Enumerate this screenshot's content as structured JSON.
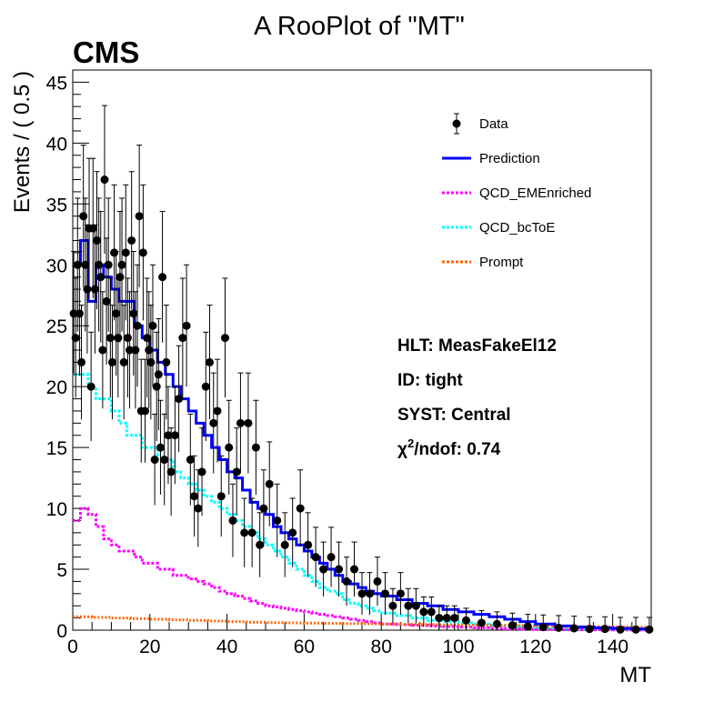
{
  "chart_data": {
    "type": "line",
    "title": "A RooPlot of \"MT\"",
    "xlabel": "MT",
    "ylabel": "Events / ( 0.5 )",
    "xlim": [
      0,
      150
    ],
    "ylim": [
      0,
      46
    ],
    "x_ticks": [
      0,
      20,
      40,
      60,
      80,
      100,
      120,
      140
    ],
    "y_ticks": [
      0,
      5,
      10,
      15,
      20,
      25,
      30,
      35,
      40,
      45
    ],
    "bin_width": 0.5,
    "legend_position": "top-right",
    "colors": {
      "Data": "#000000",
      "Prediction": "#0000ff",
      "QCD_EMEnriched": "#ff00ff",
      "QCD_bcToE": "#00ffff",
      "Prompt": "#ff6600"
    },
    "legend": [
      {
        "name": "Data",
        "style": "marker"
      },
      {
        "name": "Prediction",
        "style": "solid"
      },
      {
        "name": "QCD_EMEnriched",
        "style": "dotted"
      },
      {
        "name": "QCD_bcToE",
        "style": "dotted"
      },
      {
        "name": "Prompt",
        "style": "dotted"
      }
    ],
    "series": [
      {
        "name": "Data",
        "x": [
          0.25,
          0.75,
          1.25,
          1.75,
          2.25,
          2.75,
          3.25,
          3.75,
          4.25,
          4.75,
          5.25,
          5.75,
          6.25,
          6.75,
          7.25,
          7.75,
          8.25,
          8.75,
          9.25,
          9.75,
          10.25,
          10.75,
          11.25,
          11.75,
          12.25,
          12.75,
          13.25,
          13.75,
          14.25,
          14.75,
          15.25,
          15.75,
          16.25,
          16.75,
          17.25,
          17.75,
          18.25,
          18.75,
          19.25,
          19.75,
          20.25,
          20.75,
          21.25,
          21.75,
          22.25,
          22.75,
          23.25,
          23.75,
          24.25,
          24.75,
          25.5,
          26.5,
          27.5,
          28.5,
          29.5,
          30.5,
          31.5,
          32.5,
          33.5,
          34.5,
          35.5,
          36.5,
          37.5,
          38.5,
          39.5,
          40.5,
          41.5,
          42.5,
          43.5,
          44.5,
          45.5,
          46.5,
          47.5,
          48.5,
          49.5,
          51,
          53,
          55,
          57,
          59,
          61,
          63,
          65,
          67,
          69,
          71,
          73,
          75,
          77,
          79,
          81,
          83,
          85,
          87,
          89,
          91,
          93,
          95,
          97,
          99,
          102,
          106,
          110,
          114,
          118,
          122,
          126,
          130,
          134,
          138,
          142,
          146,
          149.5
        ],
        "y": [
          26,
          24,
          30,
          26,
          22,
          34,
          30,
          28,
          33,
          20,
          33,
          28,
          32,
          30,
          29,
          23,
          37,
          27,
          30,
          24,
          22,
          31,
          26,
          24,
          29,
          30,
          22,
          31,
          24,
          23,
          32,
          26,
          23,
          25,
          34,
          18,
          31,
          18,
          24,
          23,
          22,
          25,
          14,
          20,
          21,
          15,
          29,
          14,
          22,
          16,
          13,
          16,
          19,
          24,
          25,
          14,
          11,
          10,
          13,
          20,
          22,
          17,
          18,
          11,
          24,
          15,
          9,
          13,
          17,
          8,
          17,
          8,
          15,
          7,
          10,
          12,
          9,
          7,
          8,
          10,
          7,
          6,
          5,
          6,
          5,
          4,
          5,
          3,
          3,
          4,
          3,
          2,
          3,
          2,
          2,
          1.5,
          1.5,
          1,
          1,
          1,
          0.8,
          0.6,
          0.5,
          0.4,
          0.3,
          0.25,
          0.2,
          0.15,
          0.1,
          0.1,
          0.05,
          0.05,
          0.05
        ]
      },
      {
        "name": "Prediction",
        "x": [
          0,
          2,
          4,
          6,
          8,
          10,
          12,
          14,
          16,
          18,
          20,
          22,
          24,
          26,
          28,
          30,
          32,
          34,
          36,
          38,
          40,
          42,
          44,
          46,
          48,
          50,
          52,
          54,
          56,
          58,
          60,
          62,
          64,
          66,
          68,
          70,
          72,
          74,
          76,
          78,
          80,
          84,
          88,
          92,
          96,
          100,
          104,
          108,
          112,
          116,
          120,
          125,
          130,
          135,
          140,
          145,
          150
        ],
        "y": [
          30,
          32,
          27,
          30,
          29,
          28,
          27,
          27,
          25,
          24,
          23,
          22,
          21,
          20,
          19,
          18,
          17,
          16,
          15,
          14,
          13,
          12.5,
          11.5,
          10.5,
          10,
          9.5,
          8.5,
          8,
          7.5,
          7,
          6.5,
          6,
          5.5,
          5,
          4.5,
          4,
          3.8,
          3.5,
          3.2,
          3,
          2.8,
          2.5,
          2.2,
          2,
          1.7,
          1.5,
          1.3,
          1.1,
          0.9,
          0.7,
          0.5,
          0.35,
          0.25,
          0.2,
          0.15,
          0.1,
          0.08
        ]
      },
      {
        "name": "QCD_EMEnriched",
        "x": [
          0,
          2,
          4,
          6,
          8,
          10,
          12,
          14,
          16,
          18,
          20,
          22,
          24,
          26,
          28,
          30,
          32,
          34,
          36,
          38,
          40,
          42,
          44,
          46,
          48,
          50,
          52,
          54,
          56,
          58,
          60,
          62,
          64,
          66,
          68,
          70,
          72,
          74,
          76,
          78,
          80,
          84,
          88,
          92,
          96,
          100,
          104,
          108,
          112,
          116,
          120,
          125,
          130,
          135,
          140,
          145,
          150
        ],
        "y": [
          9,
          10,
          9.5,
          8.5,
          7.5,
          7,
          6.5,
          6.5,
          6,
          5.5,
          5.5,
          5,
          5,
          4.5,
          4.5,
          4.2,
          4,
          3.8,
          3.5,
          3.2,
          3,
          2.8,
          2.6,
          2.4,
          2.2,
          2,
          1.9,
          1.8,
          1.7,
          1.6,
          1.5,
          1.4,
          1.3,
          1.2,
          1.1,
          1,
          0.9,
          0.8,
          0.7,
          0.6,
          0.5,
          0.45,
          0.4,
          0.35,
          0.3,
          0.25,
          0.2,
          0.15,
          0.1,
          0.08,
          0.06,
          0.05,
          0.04,
          0.03,
          0.02,
          0.01,
          0.01
        ]
      },
      {
        "name": "QCD_bcToE",
        "x": [
          0,
          2,
          4,
          6,
          8,
          10,
          12,
          14,
          16,
          18,
          20,
          22,
          24,
          26,
          28,
          30,
          32,
          34,
          36,
          38,
          40,
          42,
          44,
          46,
          48,
          50,
          52,
          54,
          56,
          58,
          60,
          62,
          64,
          66,
          68,
          70,
          72,
          74,
          76,
          78,
          80,
          84,
          88,
          92,
          96,
          100,
          104,
          108,
          112,
          116,
          120,
          125,
          130,
          135,
          140,
          145,
          150
        ],
        "y": [
          21,
          21,
          20,
          19,
          19,
          18,
          17,
          16,
          16,
          15,
          15,
          14,
          14,
          13,
          12.5,
          12,
          11.5,
          11,
          10.5,
          10,
          9.5,
          9,
          8.5,
          8,
          7.5,
          7,
          6.5,
          6,
          5.5,
          5,
          4.5,
          4,
          3.5,
          3.2,
          3,
          2.5,
          2.2,
          2,
          1.8,
          1.6,
          1.4,
          1.2,
          1,
          0.8,
          0.7,
          0.6,
          0.5,
          0.4,
          0.3,
          0.25,
          0.2,
          0.15,
          0.1,
          0.08,
          0.06,
          0.05,
          0.04
        ]
      },
      {
        "name": "Prompt",
        "x": [
          0,
          5,
          10,
          15,
          20,
          25,
          30,
          35,
          40,
          45,
          50,
          55,
          60,
          65,
          70,
          75,
          80,
          85,
          90,
          95,
          100,
          105,
          110,
          115,
          120,
          125,
          130,
          135,
          140,
          145,
          150
        ],
        "y": [
          1.1,
          1.05,
          1,
          0.95,
          0.9,
          0.85,
          0.8,
          0.75,
          0.7,
          0.65,
          0.62,
          0.6,
          0.58,
          0.56,
          0.54,
          0.52,
          0.5,
          0.48,
          0.46,
          0.44,
          0.42,
          0.4,
          0.38,
          0.36,
          0.34,
          0.32,
          0.3,
          0.28,
          0.26,
          0.24,
          0.22
        ]
      }
    ]
  },
  "labels": {
    "experiment": "CMS",
    "hlt": "HLT: MeasFakeEl12",
    "id": "ID: tight",
    "syst": "SYST: Central",
    "chi2_prefix": "χ",
    "chi2_sup": "2",
    "chi2_suffix": "/ndof: 0.74"
  }
}
